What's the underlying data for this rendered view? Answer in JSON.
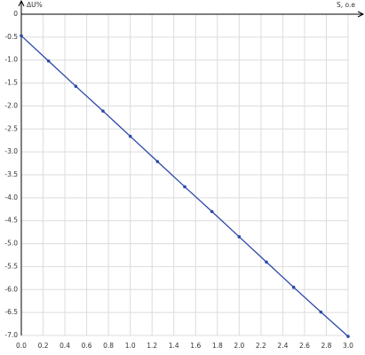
{
  "chart_data": {
    "type": "line",
    "x_label": "S, o.e",
    "y_label": "ΔU%",
    "x": [
      0,
      0.25,
      0.5,
      0.75,
      1.0,
      1.25,
      1.5,
      1.75,
      2.0,
      2.25,
      2.5,
      2.75,
      3.0
    ],
    "series": [
      {
        "color": "#2b48a8",
        "values": [
          -0.47,
          -1.02,
          -1.57,
          -2.11,
          -2.66,
          -3.21,
          -3.76,
          -4.3,
          -4.85,
          -5.4,
          -5.95,
          -6.49,
          -7.02
        ]
      }
    ],
    "xlim": [
      0,
      3.0
    ],
    "ylim": [
      -7.0,
      0
    ],
    "xticks": [
      {
        "value": 0,
        "label": "0.0"
      },
      0.2,
      0.4,
      0.6,
      0.8,
      {
        "value": 1,
        "label": "1.0"
      },
      1.2,
      1.4,
      1.6,
      1.8,
      {
        "value": 2,
        "label": "2.0"
      },
      2.2,
      2.4,
      2.6,
      2.8,
      {
        "value": 3,
        "label": "3.0"
      }
    ],
    "yticks": [
      0,
      -0.5,
      {
        "value": -1,
        "label": "-1.0"
      },
      -1.5,
      {
        "value": -2,
        "label": "-2.0"
      },
      -2.5,
      {
        "value": -3,
        "label": "-3.0"
      },
      -3.5,
      {
        "value": -4,
        "label": "-4.0"
      },
      -4.5,
      {
        "value": -5,
        "label": "-5.0"
      },
      -5.5,
      {
        "value": -6,
        "label": "-6.0"
      },
      -6.5,
      {
        "value": -7,
        "label": "-7.0"
      }
    ],
    "grid": true
  }
}
